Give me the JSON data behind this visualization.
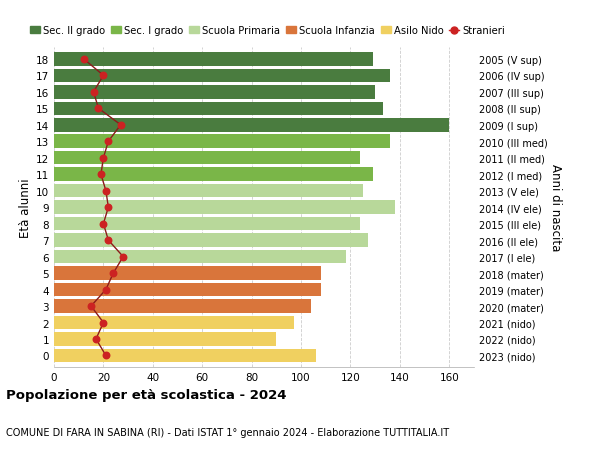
{
  "ages": [
    18,
    17,
    16,
    15,
    14,
    13,
    12,
    11,
    10,
    9,
    8,
    7,
    6,
    5,
    4,
    3,
    2,
    1,
    0
  ],
  "years": [
    "2005 (V sup)",
    "2006 (IV sup)",
    "2007 (III sup)",
    "2008 (II sup)",
    "2009 (I sup)",
    "2010 (III med)",
    "2011 (II med)",
    "2012 (I med)",
    "2013 (V ele)",
    "2014 (IV ele)",
    "2015 (III ele)",
    "2016 (II ele)",
    "2017 (I ele)",
    "2018 (mater)",
    "2019 (mater)",
    "2020 (mater)",
    "2021 (nido)",
    "2022 (nido)",
    "2023 (nido)"
  ],
  "bar_values": [
    129,
    136,
    130,
    133,
    160,
    136,
    124,
    129,
    125,
    138,
    124,
    127,
    118,
    108,
    108,
    104,
    97,
    90,
    106
  ],
  "stranieri": [
    12,
    20,
    16,
    18,
    27,
    22,
    20,
    19,
    21,
    22,
    20,
    22,
    28,
    24,
    21,
    15,
    20,
    17,
    21
  ],
  "bar_colors": [
    "#4a7c3f",
    "#4a7c3f",
    "#4a7c3f",
    "#4a7c3f",
    "#4a7c3f",
    "#7ab648",
    "#7ab648",
    "#7ab648",
    "#b8d89a",
    "#b8d89a",
    "#b8d89a",
    "#b8d89a",
    "#b8d89a",
    "#d9753b",
    "#d9753b",
    "#d9753b",
    "#f0d060",
    "#f0d060",
    "#f0d060"
  ],
  "legend_labels": [
    "Sec. II grado",
    "Sec. I grado",
    "Scuola Primaria",
    "Scuola Infanzia",
    "Asilo Nido",
    "Stranieri"
  ],
  "legend_colors": [
    "#4a7c3f",
    "#7ab648",
    "#b8d89a",
    "#d9753b",
    "#f0d060",
    "#cc2222"
  ],
  "stranieri_color": "#cc2222",
  "stranieri_line_color": "#8b1a1a",
  "ylabel": "Età alunni",
  "right_ylabel": "Anni di nascita",
  "title": "Popolazione per età scolastica - 2024",
  "subtitle": "COMUNE DI FARA IN SABINA (RI) - Dati ISTAT 1° gennaio 2024 - Elaborazione TUTTITALIA.IT",
  "xlim": [
    0,
    170
  ],
  "xticks": [
    0,
    20,
    40,
    60,
    80,
    100,
    120,
    140,
    160
  ],
  "grid_color": "#cccccc",
  "bg_color": "#ffffff",
  "bar_height": 0.82
}
